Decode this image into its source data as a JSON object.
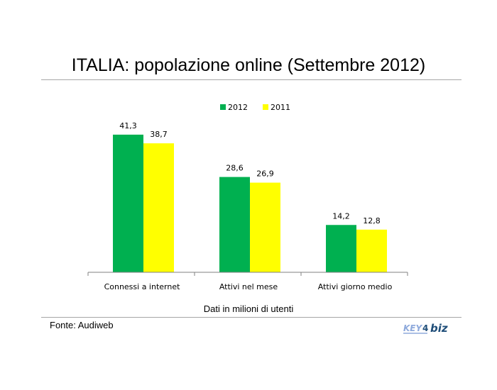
{
  "title": "ITALIA: popolazione online (Settembre 2012)",
  "chart_data": {
    "type": "bar",
    "categories": [
      "Connessi a internet",
      "Attivi nel mese",
      "Attivi giorno medio"
    ],
    "series": [
      {
        "name": "2012",
        "values": [
          41.3,
          28.6,
          14.2
        ],
        "labels": [
          "41,3",
          "28,6",
          "14,2"
        ],
        "color": "#00b050"
      },
      {
        "name": "2011",
        "values": [
          38.7,
          26.9,
          12.8
        ],
        "labels": [
          "38,7",
          "26,9",
          "12,8"
        ],
        "color": "#ffff00"
      }
    ],
    "ylim": [
      0,
      50
    ],
    "grid": false,
    "legend_position": "top-center",
    "xlabel": "Dati in milioni di utenti"
  },
  "source": "Fonte: Audiweb",
  "logo": {
    "text": "KEY4biz",
    "colors": [
      "#1f4e79",
      "#8faadc"
    ]
  }
}
